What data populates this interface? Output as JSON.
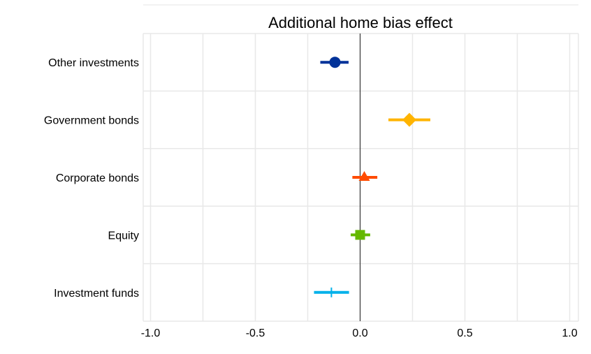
{
  "chart_data": {
    "type": "scatter",
    "subtype": "coefficient plot with confidence intervals",
    "title": "Additional home bias effect",
    "xlabel": "",
    "ylabel": "",
    "xlim": [
      -1.0,
      1.0
    ],
    "xticks": [
      -1.0,
      -0.5,
      0.0,
      0.5,
      1.0
    ],
    "xtick_labels": [
      "-1.0",
      "-0.5",
      "0.0",
      "0.5",
      "1.0"
    ],
    "grid": true,
    "reference_line": 0.0,
    "categories": [
      "Other investments",
      "Government bonds",
      "Corporate bonds",
      "Equity",
      "Investment funds"
    ],
    "points": [
      {
        "category": "Other investments",
        "value": -0.12,
        "low": -0.19,
        "high": -0.055,
        "marker": "circle",
        "color": "#003299"
      },
      {
        "category": "Government bonds",
        "value": 0.235,
        "low": 0.135,
        "high": 0.335,
        "marker": "diamond",
        "color": "#FFB400"
      },
      {
        "category": "Corporate bonds",
        "value": 0.02,
        "low": -0.037,
        "high": 0.082,
        "marker": "triangle",
        "color": "#FF4B00"
      },
      {
        "category": "Equity",
        "value": 0.0,
        "low": -0.045,
        "high": 0.048,
        "marker": "square",
        "color": "#65B800"
      },
      {
        "category": "Investment funds",
        "value": -0.137,
        "low": -0.22,
        "high": -0.053,
        "marker": "plus",
        "color": "#00B1EA"
      }
    ]
  }
}
